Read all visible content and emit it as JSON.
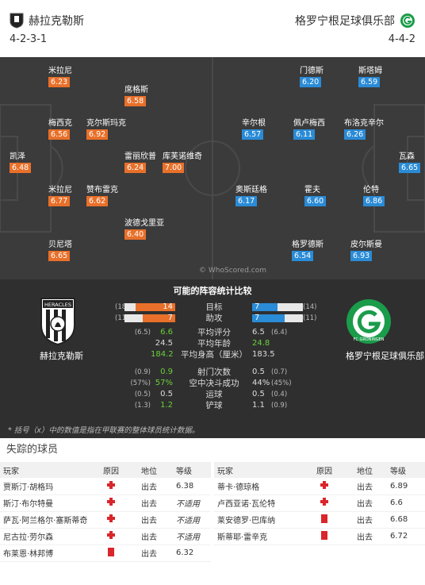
{
  "header": {
    "home_team": "赫拉克勒斯",
    "away_team": "格罗宁根足球俱乐部",
    "home_formation": "4-2-3-1",
    "away_formation": "4-4-2"
  },
  "pitch": {
    "watermark": "© WhoScored.com",
    "home_players": [
      {
        "name": "米拉尼",
        "rating": "6.23"
      },
      {
        "name": "席格斯",
        "rating": "6.58"
      },
      {
        "name": "梅西克",
        "rating": "6.56"
      },
      {
        "name": "克尔斯玛克",
        "rating": "6.92"
      },
      {
        "name": "凯泽",
        "rating": "6.48"
      },
      {
        "name": "雷丽欣普",
        "rating": "6.24"
      },
      {
        "name": "库芙诺维奇",
        "rating": "7.00"
      },
      {
        "name": "米拉尼",
        "rating": "6.77"
      },
      {
        "name": "赞布雷克",
        "rating": "6.62"
      },
      {
        "name": "波德戈里亚",
        "rating": "6.40"
      },
      {
        "name": "贝尼塔",
        "rating": "6.65"
      }
    ],
    "away_players": [
      {
        "name": "门德斯",
        "rating": "6.20"
      },
      {
        "name": "斯塔姆",
        "rating": "6.59"
      },
      {
        "name": "辛尔根",
        "rating": "6.57"
      },
      {
        "name": "佩卢梅西",
        "rating": "6.11"
      },
      {
        "name": "布洛克辛尔",
        "rating": "6.26"
      },
      {
        "name": "瓦森",
        "rating": "6.65"
      },
      {
        "name": "奥斯廷格",
        "rating": "6.17"
      },
      {
        "name": "霍夫",
        "rating": "6.60"
      },
      {
        "name": "伦特",
        "rating": "6.86"
      },
      {
        "name": "格罗德斯",
        "rating": "6.54"
      },
      {
        "name": "皮尔斯曼",
        "rating": "6.93"
      }
    ]
  },
  "compare": {
    "title": "可能的阵容统计比较",
    "home_crest_text": "HERACLES",
    "home_name": "赫拉克勒斯",
    "away_crest_text": "FC GRONINGEN",
    "away_name": "格罗宁根足球俱乐部",
    "goals": {
      "label": "目标",
      "home": "14",
      "home_paren": "(18)",
      "away": "7",
      "away_paren": "(14)",
      "home_frac": 0.78,
      "away_frac": 0.5
    },
    "assists": {
      "label": "助攻",
      "home": "7",
      "home_paren": "(11)",
      "away": "7",
      "away_paren": "(11)",
      "home_frac": 0.64,
      "away_frac": 0.64
    },
    "stats": [
      {
        "label": "平均评分",
        "home": "6.6",
        "home_paren": "(6.5)",
        "away": "6.5",
        "away_paren": "(6.4)",
        "home_hi": true,
        "away_hi": false
      },
      {
        "label": "平均年龄",
        "home": "24.5",
        "home_paren": "",
        "away": "24.8",
        "away_paren": "",
        "home_hi": false,
        "away_hi": true
      },
      {
        "label": "平均身高（厘米）",
        "home": "184.2",
        "home_paren": "",
        "away": "183.5",
        "away_paren": "",
        "home_hi": true,
        "away_hi": false
      },
      {
        "label": "射门次数",
        "home": "0.9",
        "home_paren": "(0.9)",
        "away": "0.5",
        "away_paren": "(0.7)",
        "home_hi": true,
        "away_hi": false
      },
      {
        "label": "空中决斗成功",
        "home": "57%",
        "home_paren": "(57%)",
        "away": "44%",
        "away_paren": "(45%)",
        "home_hi": true,
        "away_hi": false
      },
      {
        "label": "运球",
        "home": "0.5",
        "home_paren": "(0.5)",
        "away": "0.5",
        "away_paren": "(0.4)",
        "home_hi": false,
        "away_hi": false
      },
      {
        "label": "铲球",
        "home": "1.2",
        "home_paren": "(1.3)",
        "away": "1.1",
        "away_paren": "(0.9)",
        "home_hi": true,
        "away_hi": false
      }
    ],
    "footnote": "* 括号（x）中的数值是指在甲联赛的整体球员统计数据。"
  },
  "missing": {
    "title": "失踪的球员",
    "headers": {
      "player": "玩家",
      "reason": "原因",
      "status": "地位",
      "rating": "等级"
    },
    "home": [
      {
        "player": "贾斯汀·胡格玛",
        "reason": "injury",
        "status": "出去",
        "rating": "6.38"
      },
      {
        "player": "斯汀·布尔特曼",
        "reason": "injury",
        "status": "出去",
        "rating": "不适用"
      },
      {
        "player": "萨瓦·阿兰格尔·塞斯蒂奇",
        "reason": "injury",
        "status": "出去",
        "rating": "不适用"
      },
      {
        "player": "尼古拉·劳尔森",
        "reason": "injury",
        "status": "出去",
        "rating": "不适用"
      },
      {
        "player": "布莱恩·林邦博",
        "reason": "red",
        "status": "出去",
        "rating": "6.32"
      }
    ],
    "away": [
      {
        "player": "蒂卡·德琼格",
        "reason": "injury",
        "status": "出去",
        "rating": "6.89"
      },
      {
        "player": "卢西亚诺·瓦伦特",
        "reason": "injury",
        "status": "出去",
        "rating": "6.6"
      },
      {
        "player": "莱安德罗·巴库纳",
        "reason": "red",
        "status": "出去",
        "rating": "6.68"
      },
      {
        "player": "斯蒂耶·雷辛克",
        "reason": "red",
        "status": "出去",
        "rating": "6.72"
      }
    ]
  }
}
